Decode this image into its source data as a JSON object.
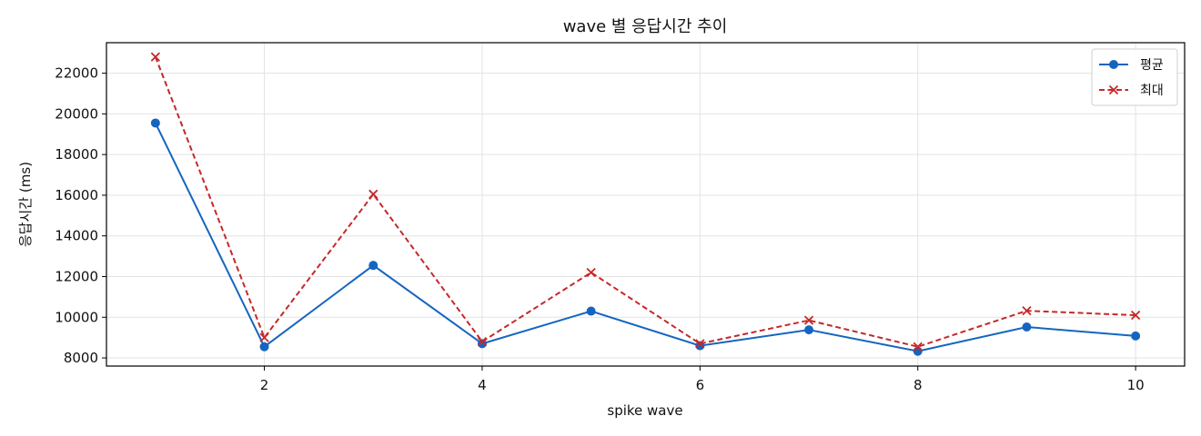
{
  "chart_data": {
    "type": "line",
    "title": "wave 별 응답시간 추이",
    "xlabel": "spike wave",
    "ylabel": "응답시간 (ms)",
    "x": [
      1,
      2,
      3,
      4,
      5,
      6,
      7,
      8,
      9,
      10
    ],
    "xlim": [
      0.55,
      10.45
    ],
    "ylim": [
      7600,
      23500
    ],
    "xticks": [
      2,
      4,
      6,
      8,
      10
    ],
    "yticks": [
      8000,
      10000,
      12000,
      14000,
      16000,
      18000,
      20000,
      22000
    ],
    "grid": true,
    "legend_position": "top-right",
    "series": [
      {
        "name": "평균",
        "color": "#1565c0",
        "line_style": "solid",
        "marker": "circle",
        "values": [
          19550,
          8550,
          12550,
          8700,
          10300,
          8600,
          9380,
          8330,
          9520,
          9080
        ]
      },
      {
        "name": "최대",
        "color": "#c62828",
        "line_style": "dashed",
        "marker": "x",
        "values": [
          22800,
          9000,
          16050,
          8800,
          12200,
          8700,
          9850,
          8550,
          10320,
          10100
        ]
      }
    ]
  }
}
